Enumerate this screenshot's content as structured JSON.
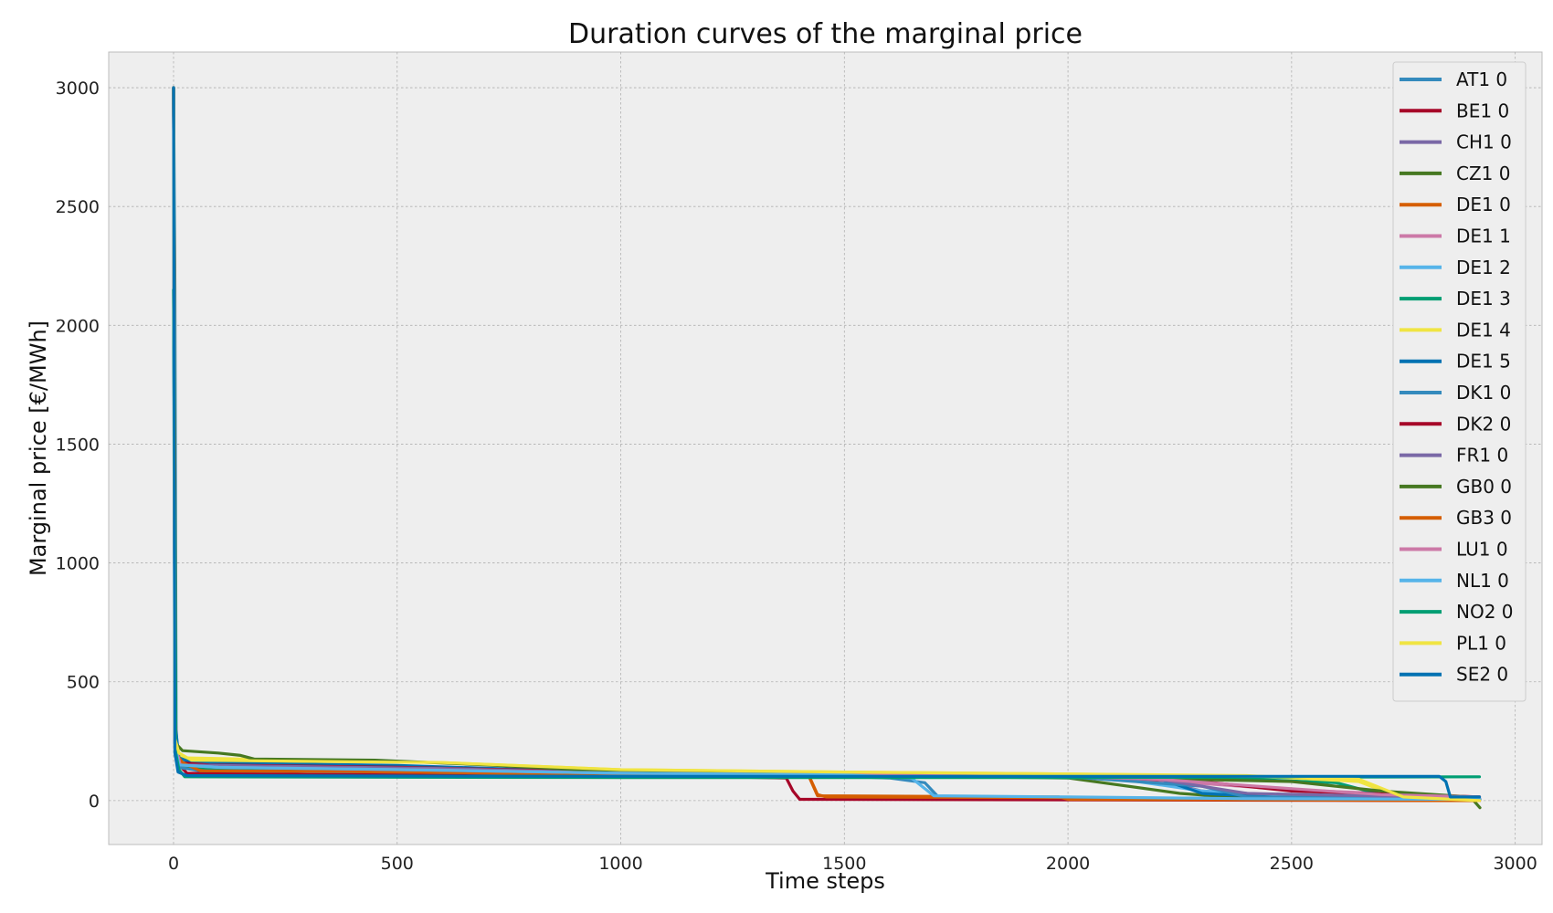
{
  "chart_data": {
    "type": "line",
    "title": "Duration curves of the marginal price",
    "xlabel": "Time steps",
    "ylabel": "Marginal price [€/MWh]",
    "xlim": [
      -145,
      3060
    ],
    "ylim": [
      -185,
      3150
    ],
    "xticks": [
      0,
      500,
      1000,
      1500,
      2000,
      2500,
      3000
    ],
    "yticks": [
      0,
      500,
      1000,
      1500,
      2000,
      2500,
      3000
    ],
    "grid": true,
    "legend_position": "top-right",
    "series": [
      {
        "name": "AT1 0",
        "color": "#348ABD",
        "points": [
          [
            0,
            3000
          ],
          [
            3,
            2150
          ],
          [
            6,
            220
          ],
          [
            12,
            160
          ],
          [
            40,
            150
          ],
          [
            200,
            148
          ],
          [
            600,
            130
          ],
          [
            1000,
            115
          ],
          [
            1400,
            108
          ],
          [
            1600,
            95
          ],
          [
            1680,
            75
          ],
          [
            1710,
            15
          ],
          [
            2000,
            12
          ],
          [
            2300,
            10
          ],
          [
            2700,
            5
          ],
          [
            2921,
            5
          ]
        ]
      },
      {
        "name": "BE1 0",
        "color": "#A60628",
        "points": [
          [
            0,
            3000
          ],
          [
            4,
            240
          ],
          [
            12,
            150
          ],
          [
            30,
            115
          ],
          [
            300,
            110
          ],
          [
            1000,
            108
          ],
          [
            1370,
            95
          ],
          [
            1385,
            40
          ],
          [
            1400,
            5
          ],
          [
            2920,
            0
          ]
        ]
      },
      {
        "name": "CH1 0",
        "color": "#7A68A6",
        "points": [
          [
            0,
            3000
          ],
          [
            3,
            400
          ],
          [
            10,
            150
          ],
          [
            60,
            130
          ],
          [
            400,
            125
          ],
          [
            1000,
            115
          ],
          [
            1500,
            108
          ],
          [
            2000,
            100
          ],
          [
            2200,
            85
          ],
          [
            2300,
            40
          ],
          [
            2500,
            20
          ],
          [
            2920,
            10
          ]
        ]
      },
      {
        "name": "CZ1 0",
        "color": "#467821",
        "points": [
          [
            0,
            3000
          ],
          [
            4,
            200
          ],
          [
            15,
            150
          ],
          [
            60,
            135
          ],
          [
            400,
            130
          ],
          [
            1000,
            112
          ],
          [
            1500,
            105
          ],
          [
            2000,
            95
          ],
          [
            2250,
            30
          ],
          [
            2400,
            10
          ],
          [
            2920,
            0
          ]
        ]
      },
      {
        "name": "DE1 0",
        "color": "#D55E00",
        "points": [
          [
            0,
            3000
          ],
          [
            4,
            220
          ],
          [
            20,
            150
          ],
          [
            60,
            130
          ],
          [
            300,
            128
          ],
          [
            1000,
            112
          ],
          [
            1420,
            108
          ],
          [
            1440,
            25
          ],
          [
            1460,
            15
          ],
          [
            2000,
            12
          ],
          [
            2420,
            5
          ],
          [
            2920,
            0
          ]
        ]
      },
      {
        "name": "DE1 1",
        "color": "#CC79A7",
        "points": [
          [
            0,
            3000
          ],
          [
            3,
            250
          ],
          [
            15,
            150
          ],
          [
            100,
            135
          ],
          [
            600,
            128
          ],
          [
            1000,
            115
          ],
          [
            1500,
            108
          ],
          [
            2000,
            100
          ],
          [
            2200,
            85
          ],
          [
            2500,
            45
          ],
          [
            2700,
            30
          ],
          [
            2920,
            15
          ]
        ]
      },
      {
        "name": "DE1 2",
        "color": "#56B4E9",
        "points": [
          [
            0,
            3000
          ],
          [
            3,
            240
          ],
          [
            12,
            150
          ],
          [
            80,
            140
          ],
          [
            500,
            130
          ],
          [
            1000,
            115
          ],
          [
            1500,
            108
          ],
          [
            2100,
            95
          ],
          [
            2300,
            40
          ],
          [
            2500,
            15
          ],
          [
            2920,
            8
          ]
        ]
      },
      {
        "name": "DE1 3",
        "color": "#009E73",
        "points": [
          [
            0,
            3000
          ],
          [
            3,
            230
          ],
          [
            12,
            150
          ],
          [
            80,
            135
          ],
          [
            500,
            125
          ],
          [
            1000,
            112
          ],
          [
            1500,
            108
          ],
          [
            2000,
            102
          ],
          [
            2400,
            90
          ],
          [
            2600,
            75
          ],
          [
            2700,
            25
          ],
          [
            2920,
            5
          ]
        ]
      },
      {
        "name": "DE1 4",
        "color": "#F0E442",
        "points": [
          [
            0,
            3000
          ],
          [
            3,
            260
          ],
          [
            15,
            180
          ],
          [
            300,
            170
          ],
          [
            600,
            160
          ],
          [
            1000,
            130
          ],
          [
            1500,
            120
          ],
          [
            2000,
            112
          ],
          [
            2400,
            105
          ],
          [
            2650,
            80
          ],
          [
            2720,
            30
          ],
          [
            2920,
            0
          ]
        ]
      },
      {
        "name": "DE1 5",
        "color": "#0072B2",
        "points": [
          [
            0,
            2150
          ],
          [
            5,
            300
          ],
          [
            12,
            180
          ],
          [
            40,
            160
          ],
          [
            500,
            148
          ],
          [
            1000,
            118
          ],
          [
            1500,
            110
          ],
          [
            2000,
            105
          ],
          [
            2200,
            95
          ],
          [
            2300,
            30
          ],
          [
            2500,
            10
          ],
          [
            2920,
            5
          ]
        ]
      },
      {
        "name": "DK1 0",
        "color": "#348ABD",
        "points": [
          [
            0,
            2150
          ],
          [
            3,
            200
          ],
          [
            10,
            140
          ],
          [
            60,
            125
          ],
          [
            500,
            120
          ],
          [
            1000,
            110
          ],
          [
            1500,
            105
          ],
          [
            2000,
            100
          ],
          [
            2300,
            60
          ],
          [
            2400,
            15
          ],
          [
            2920,
            10
          ]
        ]
      },
      {
        "name": "DK2 0",
        "color": "#A60628",
        "points": [
          [
            0,
            3000
          ],
          [
            3,
            240
          ],
          [
            10,
            160
          ],
          [
            80,
            150
          ],
          [
            500,
            140
          ],
          [
            1000,
            120
          ],
          [
            1500,
            110
          ],
          [
            2000,
            105
          ],
          [
            2300,
            80
          ],
          [
            2500,
            40
          ],
          [
            2920,
            15
          ]
        ]
      },
      {
        "name": "FR1 0",
        "color": "#7A68A6",
        "points": [
          [
            0,
            3000
          ],
          [
            3,
            220
          ],
          [
            15,
            150
          ],
          [
            200,
            145
          ],
          [
            600,
            135
          ],
          [
            1000,
            115
          ],
          [
            1500,
            108
          ],
          [
            2000,
            100
          ],
          [
            2200,
            90
          ],
          [
            2400,
            30
          ],
          [
            2920,
            10
          ]
        ]
      },
      {
        "name": "GB0 0",
        "color": "#467821",
        "points": [
          [
            0,
            3000
          ],
          [
            5,
            240
          ],
          [
            20,
            210
          ],
          [
            100,
            200
          ],
          [
            150,
            190
          ],
          [
            180,
            175
          ],
          [
            450,
            170
          ],
          [
            700,
            150
          ],
          [
            1000,
            120
          ],
          [
            1500,
            110
          ],
          [
            2000,
            100
          ],
          [
            2500,
            80
          ],
          [
            2700,
            40
          ],
          [
            2900,
            15
          ],
          [
            2921,
            -30
          ]
        ]
      },
      {
        "name": "GB3 0",
        "color": "#D55E00",
        "points": [
          [
            0,
            3000
          ],
          [
            4,
            200
          ],
          [
            20,
            160
          ],
          [
            60,
            125
          ],
          [
            400,
            122
          ],
          [
            1000,
            110
          ],
          [
            1420,
            105
          ],
          [
            1440,
            20
          ],
          [
            1980,
            15
          ],
          [
            2000,
            5
          ],
          [
            2920,
            0
          ]
        ]
      },
      {
        "name": "LU1 0",
        "color": "#CC79A7",
        "points": [
          [
            0,
            3000
          ],
          [
            3,
            240
          ],
          [
            15,
            150
          ],
          [
            100,
            140
          ],
          [
            600,
            128
          ],
          [
            1000,
            115
          ],
          [
            1500,
            108
          ],
          [
            2000,
            100
          ],
          [
            2200,
            90
          ],
          [
            2500,
            50
          ],
          [
            2700,
            25
          ],
          [
            2920,
            15
          ]
        ]
      },
      {
        "name": "NL1 0",
        "color": "#56B4E9",
        "points": [
          [
            0,
            3000
          ],
          [
            3,
            230
          ],
          [
            12,
            150
          ],
          [
            100,
            140
          ],
          [
            500,
            130
          ],
          [
            1000,
            115
          ],
          [
            1500,
            108
          ],
          [
            1650,
            95
          ],
          [
            1700,
            20
          ],
          [
            2000,
            15
          ],
          [
            2400,
            8
          ],
          [
            2920,
            5
          ]
        ]
      },
      {
        "name": "NO2 0",
        "color": "#009E73",
        "points": [
          [
            0,
            2150
          ],
          [
            5,
            200
          ],
          [
            12,
            130
          ],
          [
            25,
            100
          ],
          [
            500,
            98
          ],
          [
            1000,
            97
          ],
          [
            2000,
            97
          ],
          [
            2920,
            100
          ]
        ]
      },
      {
        "name": "PL1 0",
        "color": "#F0E442",
        "points": [
          [
            0,
            3000
          ],
          [
            3,
            260
          ],
          [
            12,
            200
          ],
          [
            40,
            170
          ],
          [
            300,
            165
          ],
          [
            600,
            160
          ],
          [
            1000,
            130
          ],
          [
            1500,
            120
          ],
          [
            2000,
            112
          ],
          [
            2500,
            100
          ],
          [
            2650,
            90
          ],
          [
            2750,
            15
          ],
          [
            2920,
            0
          ]
        ]
      },
      {
        "name": "SE2 0",
        "color": "#0072B2",
        "points": [
          [
            0,
            3000
          ],
          [
            3,
            200
          ],
          [
            10,
            120
          ],
          [
            30,
            105
          ],
          [
            500,
            103
          ],
          [
            1000,
            102
          ],
          [
            2000,
            102
          ],
          [
            2830,
            102
          ],
          [
            2845,
            80
          ],
          [
            2855,
            15
          ],
          [
            2920,
            15
          ]
        ]
      }
    ]
  }
}
